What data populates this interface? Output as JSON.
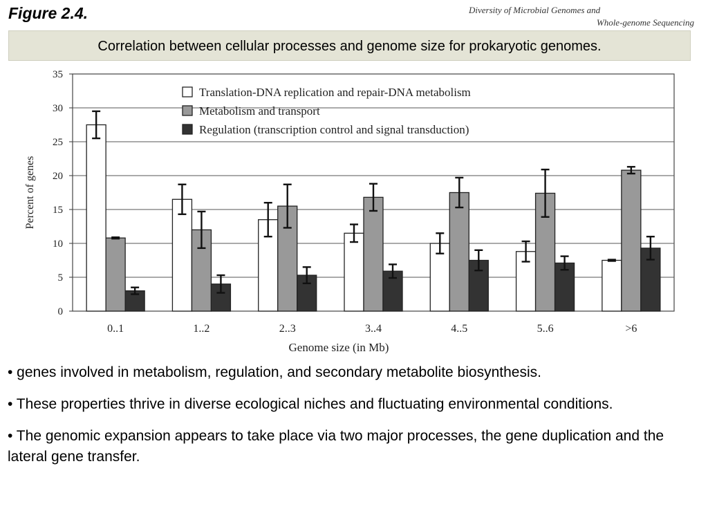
{
  "header": {
    "figure_label": "Figure 2.4.",
    "source_line1": "Diversity of Microbial Genomes and",
    "source_line2": "Whole-genome Sequencing",
    "caption": "Correlation between cellular processes and genome size for prokaryotic genomes."
  },
  "chart_data": {
    "type": "bar",
    "categories": [
      "0..1",
      "1..2",
      "2..3",
      "3..4",
      "4..5",
      "5..6",
      ">6"
    ],
    "series": [
      {
        "name": "Translation-DNA replication and repair-DNA metabolism",
        "color": "#ffffff",
        "values": [
          27.5,
          16.5,
          13.5,
          11.5,
          10,
          8.8,
          7.5
        ],
        "errors": [
          2,
          2.2,
          2.5,
          1.3,
          1.5,
          1.5,
          0.1
        ]
      },
      {
        "name": "Metabolism and transport",
        "color": "#999999",
        "values": [
          10.8,
          12,
          15.5,
          16.8,
          17.5,
          17.4,
          20.8
        ],
        "errors": [
          0.1,
          2.7,
          3.2,
          2,
          2.2,
          3.5,
          0.5
        ]
      },
      {
        "name": "Regulation (transcription control and signal transduction)",
        "color": "#333333",
        "values": [
          3,
          4,
          5.3,
          5.9,
          7.5,
          7.1,
          9.3
        ],
        "errors": [
          0.5,
          1.3,
          1.2,
          1,
          1.5,
          1,
          1.7
        ]
      }
    ],
    "xlabel": "Genome size (in Mb)",
    "ylabel": "Percent of genes",
    "ylim": [
      0,
      35
    ],
    "yticks": [
      "0",
      "5",
      "10",
      "15",
      "20",
      "25",
      "30",
      "35"
    ],
    "grid": true,
    "legend_position": "top-center"
  },
  "bullets": [
    "• genes involved in metabolism, regulation, and secondary metabolite biosynthesis.",
    "• These properties thrive in diverse ecological niches and fluctuating environmental conditions.",
    "• The genomic expansion appears to take place via two major processes, the gene duplication and the lateral gene transfer."
  ]
}
